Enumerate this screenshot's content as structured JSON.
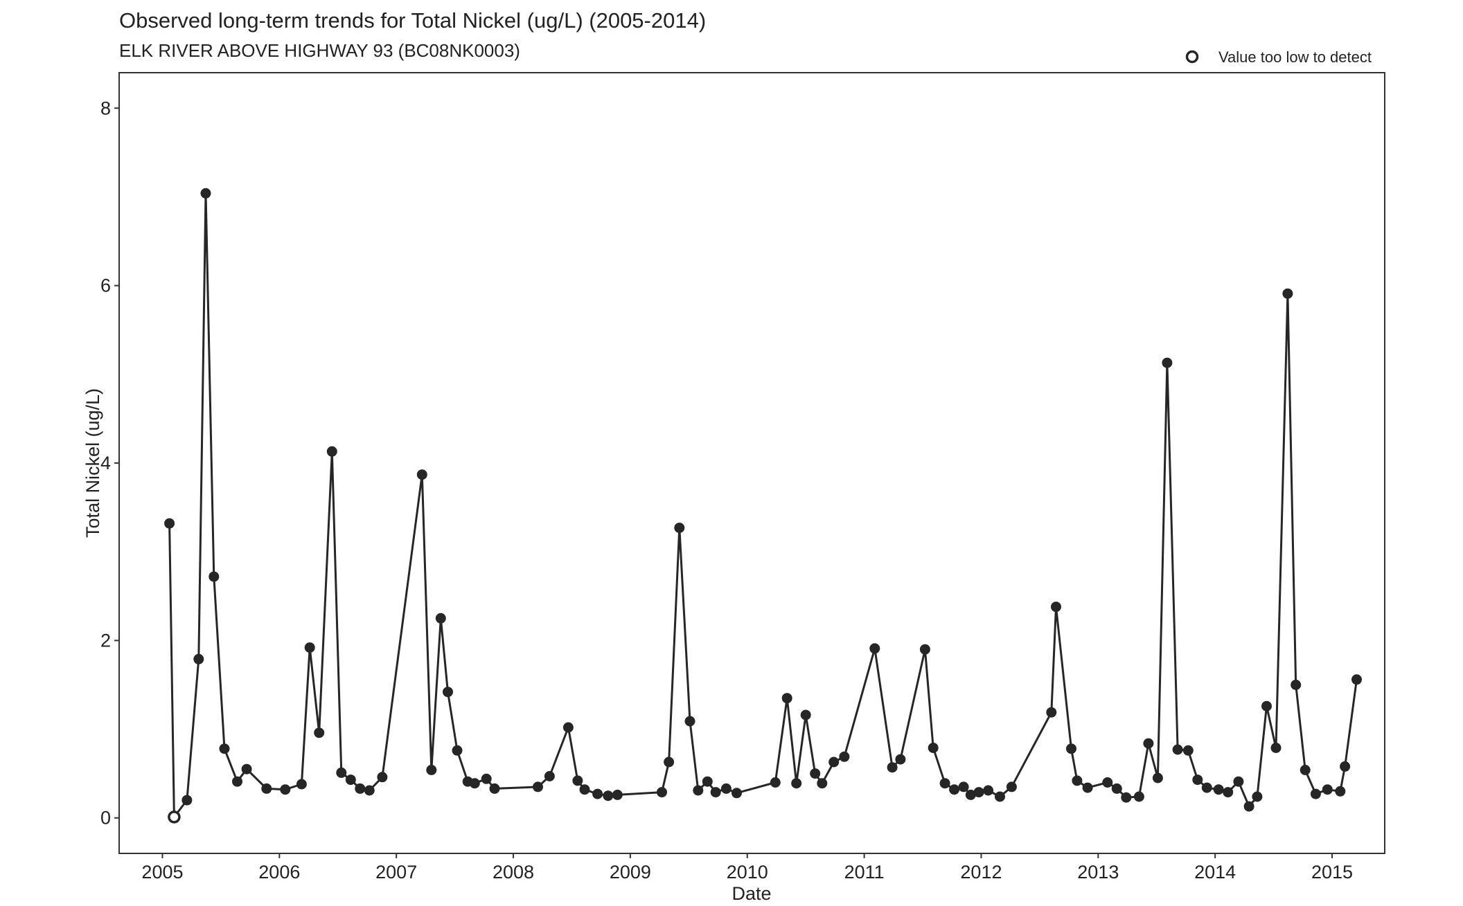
{
  "chart_data": {
    "type": "line",
    "title": "Observed long-term trends for Total Nickel (ug/L) (2005-2014)",
    "subtitle": "ELK RIVER ABOVE HIGHWAY 93 (BC08NK0003)",
    "xlabel": "Date",
    "ylabel": "Total Nickel (ug/L)",
    "xlim": [
      2004.63,
      2015.45
    ],
    "ylim": [
      -0.4,
      8.4
    ],
    "x_ticks": [
      2005,
      2006,
      2007,
      2008,
      2009,
      2010,
      2011,
      2012,
      2013,
      2014,
      2015
    ],
    "x_tick_labels": [
      "2005",
      "2006",
      "2007",
      "2008",
      "2009",
      "2010",
      "2011",
      "2012",
      "2013",
      "2014",
      "2015"
    ],
    "y_ticks": [
      0,
      2,
      4,
      6,
      8
    ],
    "y_tick_labels": [
      "0",
      "2",
      "4",
      "6",
      "8"
    ],
    "grid": false,
    "legend": {
      "position": "top-right",
      "label": "Value too low to detect",
      "marker": "open-circle"
    },
    "colors": {
      "line": "#262626",
      "point": "#262626"
    },
    "series": [
      {
        "points": [
          [
            2005.06,
            3.32,
            false
          ],
          [
            2005.1,
            0.01,
            true
          ],
          [
            2005.21,
            0.2,
            false
          ],
          [
            2005.31,
            1.79,
            false
          ],
          [
            2005.37,
            7.04,
            false
          ],
          [
            2005.44,
            2.72,
            false
          ],
          [
            2005.53,
            0.78,
            false
          ],
          [
            2005.64,
            0.41,
            false
          ],
          [
            2005.72,
            0.55,
            false
          ],
          [
            2005.89,
            0.33,
            false
          ],
          [
            2006.05,
            0.32,
            false
          ],
          [
            2006.19,
            0.38,
            false
          ],
          [
            2006.26,
            1.92,
            false
          ],
          [
            2006.34,
            0.96,
            false
          ],
          [
            2006.45,
            4.13,
            false
          ],
          [
            2006.53,
            0.51,
            false
          ],
          [
            2006.61,
            0.43,
            false
          ],
          [
            2006.69,
            0.33,
            false
          ],
          [
            2006.77,
            0.31,
            false
          ],
          [
            2006.88,
            0.46,
            false
          ],
          [
            2007.22,
            3.87,
            false
          ],
          [
            2007.3,
            0.54,
            false
          ],
          [
            2007.38,
            2.25,
            false
          ],
          [
            2007.44,
            1.42,
            false
          ],
          [
            2007.52,
            0.76,
            false
          ],
          [
            2007.61,
            0.41,
            false
          ],
          [
            2007.67,
            0.39,
            false
          ],
          [
            2007.77,
            0.44,
            false
          ],
          [
            2007.84,
            0.33,
            false
          ],
          [
            2008.21,
            0.35,
            false
          ],
          [
            2008.31,
            0.47,
            false
          ],
          [
            2008.47,
            1.02,
            false
          ],
          [
            2008.55,
            0.42,
            false
          ],
          [
            2008.61,
            0.32,
            false
          ],
          [
            2008.72,
            0.27,
            false
          ],
          [
            2008.81,
            0.25,
            false
          ],
          [
            2008.89,
            0.26,
            false
          ],
          [
            2009.27,
            0.29,
            false
          ],
          [
            2009.33,
            0.63,
            false
          ],
          [
            2009.42,
            3.27,
            false
          ],
          [
            2009.51,
            1.09,
            false
          ],
          [
            2009.58,
            0.31,
            false
          ],
          [
            2009.66,
            0.41,
            false
          ],
          [
            2009.73,
            0.29,
            false
          ],
          [
            2009.82,
            0.33,
            false
          ],
          [
            2009.91,
            0.28,
            false
          ],
          [
            2010.24,
            0.4,
            false
          ],
          [
            2010.34,
            1.35,
            false
          ],
          [
            2010.42,
            0.39,
            false
          ],
          [
            2010.5,
            1.16,
            false
          ],
          [
            2010.58,
            0.5,
            false
          ],
          [
            2010.64,
            0.39,
            false
          ],
          [
            2010.74,
            0.63,
            false
          ],
          [
            2010.83,
            0.69,
            false
          ],
          [
            2011.09,
            1.91,
            false
          ],
          [
            2011.24,
            0.57,
            false
          ],
          [
            2011.31,
            0.66,
            false
          ],
          [
            2011.52,
            1.9,
            false
          ],
          [
            2011.59,
            0.79,
            false
          ],
          [
            2011.69,
            0.39,
            false
          ],
          [
            2011.77,
            0.32,
            false
          ],
          [
            2011.85,
            0.35,
            false
          ],
          [
            2011.91,
            0.26,
            false
          ],
          [
            2011.98,
            0.29,
            false
          ],
          [
            2012.06,
            0.31,
            false
          ],
          [
            2012.16,
            0.24,
            false
          ],
          [
            2012.26,
            0.35,
            false
          ],
          [
            2012.6,
            1.19,
            false
          ],
          [
            2012.64,
            2.38,
            false
          ],
          [
            2012.77,
            0.78,
            false
          ],
          [
            2012.82,
            0.42,
            false
          ],
          [
            2012.91,
            0.34,
            false
          ],
          [
            2013.08,
            0.4,
            false
          ],
          [
            2013.16,
            0.33,
            false
          ],
          [
            2013.24,
            0.23,
            false
          ],
          [
            2013.35,
            0.24,
            false
          ],
          [
            2013.43,
            0.84,
            false
          ],
          [
            2013.51,
            0.45,
            false
          ],
          [
            2013.59,
            5.13,
            false
          ],
          [
            2013.68,
            0.77,
            false
          ],
          [
            2013.77,
            0.76,
            false
          ],
          [
            2013.85,
            0.43,
            false
          ],
          [
            2013.93,
            0.34,
            false
          ],
          [
            2014.03,
            0.32,
            false
          ],
          [
            2014.11,
            0.29,
            false
          ],
          [
            2014.2,
            0.41,
            false
          ],
          [
            2014.29,
            0.13,
            false
          ],
          [
            2014.36,
            0.24,
            false
          ],
          [
            2014.44,
            1.26,
            false
          ],
          [
            2014.52,
            0.79,
            false
          ],
          [
            2014.62,
            5.91,
            false
          ],
          [
            2014.69,
            1.5,
            false
          ],
          [
            2014.77,
            0.54,
            false
          ],
          [
            2014.86,
            0.27,
            false
          ],
          [
            2014.96,
            0.32,
            false
          ],
          [
            2015.07,
            0.3,
            false
          ],
          [
            2015.11,
            0.58,
            false
          ],
          [
            2015.21,
            1.56,
            false
          ]
        ]
      }
    ]
  }
}
